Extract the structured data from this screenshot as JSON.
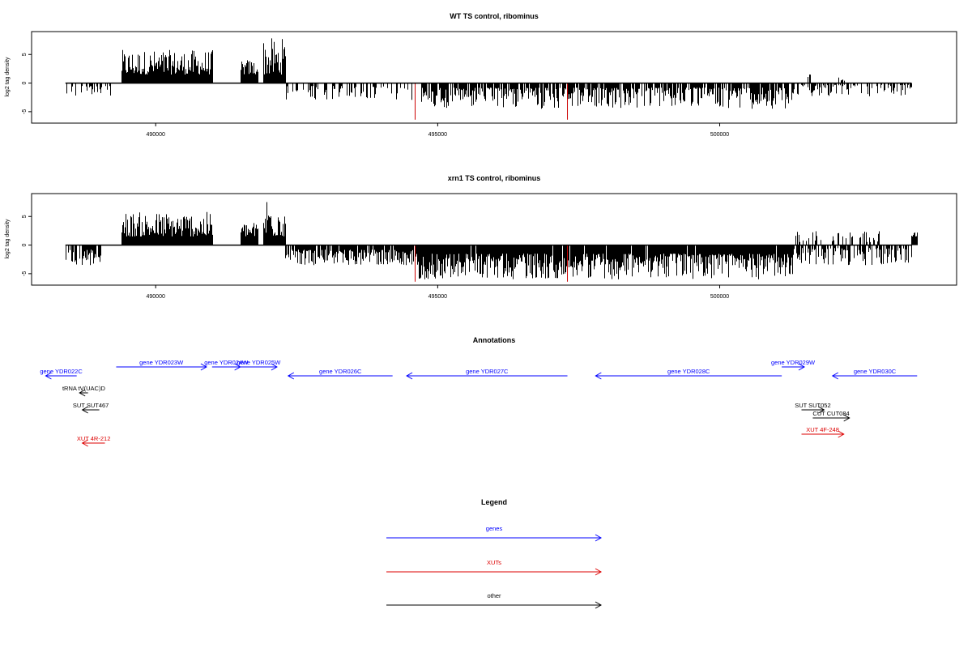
{
  "chart_data": [
    {
      "type": "bar",
      "title": "WT TS control, ribominus",
      "ylabel": "log2 tag density",
      "x_ticks": [
        490000,
        495000,
        500000
      ],
      "y_ticks": [
        -5,
        0,
        5
      ],
      "xlim": [
        487800,
        504200
      ],
      "ylim": [
        -7,
        9
      ],
      "signal_regions": [
        {
          "from": 489400,
          "to": 491000,
          "min": 1.5,
          "max": 5.8,
          "sign": 1
        },
        {
          "from": 491500,
          "to": 491800,
          "min": 1.5,
          "max": 4.2,
          "sign": 1
        },
        {
          "from": 491900,
          "to": 492300,
          "min": 1.5,
          "max": 7.9,
          "sign": 1
        },
        {
          "from": 488400,
          "to": 489200,
          "min": 0.5,
          "max": 2.4,
          "sign": -1,
          "density": 0.3
        },
        {
          "from": 492300,
          "to": 494600,
          "min": 0.5,
          "max": 3.0,
          "sign": -1,
          "density": 0.4
        },
        {
          "from": 494700,
          "to": 501300,
          "min": 0.8,
          "max": 4.5,
          "sign": -1,
          "density": 0.8
        },
        {
          "from": 501300,
          "to": 503400,
          "min": 0.3,
          "max": 2.3,
          "sign": -1,
          "density": 0.4
        },
        {
          "from": 501500,
          "to": 501600,
          "min": 0.5,
          "max": 1.6,
          "sign": 1,
          "density": 0.6
        },
        {
          "from": 502100,
          "to": 502200,
          "min": 0.4,
          "max": 1.0,
          "sign": 1,
          "density": 0.6
        }
      ],
      "highlight_x": [
        494600,
        497300
      ],
      "highlight_y": -6.4,
      "highlight_color": "#cc0000"
    },
    {
      "type": "bar",
      "title": "xrn1 TS control, ribominus",
      "ylabel": "log2 tag density",
      "x_ticks": [
        490000,
        495000,
        500000
      ],
      "y_ticks": [
        -5,
        0,
        5
      ],
      "xlim": [
        487800,
        504200
      ],
      "ylim": [
        -7,
        9
      ],
      "signal_regions": [
        {
          "from": 489400,
          "to": 491000,
          "min": 1.5,
          "max": 5.8,
          "sign": 1
        },
        {
          "from": 491500,
          "to": 491800,
          "min": 1.5,
          "max": 4.0,
          "sign": 1
        },
        {
          "from": 491900,
          "to": 492300,
          "min": 1.5,
          "max": 9.0,
          "sign": 1
        },
        {
          "from": 488400,
          "to": 489100,
          "min": 0.8,
          "max": 3.5,
          "sign": -1,
          "density": 0.7
        },
        {
          "from": 492300,
          "to": 494600,
          "min": 0.8,
          "max": 3.5,
          "sign": -1,
          "density": 0.9
        },
        {
          "from": 494600,
          "to": 501300,
          "min": 1.5,
          "max": 6.0,
          "sign": -1,
          "density": 0.97
        },
        {
          "from": 501300,
          "to": 503400,
          "min": 0.5,
          "max": 3.5,
          "sign": -1,
          "density": 0.6
        },
        {
          "from": 501300,
          "to": 502900,
          "min": 0.5,
          "max": 2.5,
          "sign": 1,
          "density": 0.3
        },
        {
          "from": 503400,
          "to": 503500,
          "min": 1.5,
          "max": 2.3,
          "sign": 1,
          "density": 1
        }
      ],
      "highlight_x": [
        494600,
        497300
      ],
      "highlight_y": -6.4,
      "highlight_color": "#cc0000"
    }
  ],
  "annotations": {
    "title": "Annotations",
    "features": [
      {
        "label": "gene YDR022C",
        "color": "#0000ff",
        "from": 488600,
        "to": 488050,
        "dir": "left",
        "row": 1
      },
      {
        "label": "gene YDR023W",
        "color": "#0000ff",
        "from": 489300,
        "to": 490900,
        "dir": "right",
        "row": 0
      },
      {
        "label": "gene YDR024W",
        "color": "#0000ff",
        "from": 491000,
        "to": 491500,
        "dir": "right",
        "row": 0
      },
      {
        "label": "gene YDR025W",
        "color": "#0000ff",
        "from": 491500,
        "to": 492150,
        "dir": "right",
        "row": 0
      },
      {
        "label": "gene YDR026C",
        "color": "#0000ff",
        "from": 494200,
        "to": 492350,
        "dir": "left",
        "row": 1
      },
      {
        "label": "gene YDR027C",
        "color": "#0000ff",
        "from": 497300,
        "to": 494450,
        "dir": "left",
        "row": 1
      },
      {
        "label": "gene YDR028C",
        "color": "#0000ff",
        "from": 501100,
        "to": 497800,
        "dir": "left",
        "row": 1
      },
      {
        "label": "gene YDR029W",
        "color": "#0000ff",
        "from": 501100,
        "to": 501500,
        "dir": "right",
        "row": 0
      },
      {
        "label": "gene YDR030C",
        "color": "#0000ff",
        "from": 503500,
        "to": 502000,
        "dir": "left",
        "row": 1
      },
      {
        "label": "tRNA tV(UAC)D",
        "color": "#000000",
        "from": 488800,
        "to": 488650,
        "dir": "left",
        "row": 2
      },
      {
        "label": "SUT SUT467",
        "color": "#000000",
        "from": 489000,
        "to": 488700,
        "dir": "left",
        "row": 3
      },
      {
        "label": "SUT SUT052",
        "color": "#000000",
        "from": 501450,
        "to": 501850,
        "dir": "right",
        "row": 3
      },
      {
        "label": "CUT CUT084",
        "color": "#000000",
        "from": 501650,
        "to": 502300,
        "dir": "right",
        "row": 4
      },
      {
        "label": "XUT 4F-248",
        "color": "#dd0000",
        "from": 501450,
        "to": 502200,
        "dir": "right",
        "row": 5
      },
      {
        "label": "XUT 4R-212",
        "color": "#dd0000",
        "from": 489100,
        "to": 488700,
        "dir": "left",
        "row": 6
      }
    ]
  },
  "legend": {
    "title": "Legend",
    "items": [
      {
        "label": "genes",
        "color": "#0000ff"
      },
      {
        "label": "XUTs",
        "color": "#dd0000"
      },
      {
        "label": "other",
        "color": "#000000"
      }
    ]
  }
}
